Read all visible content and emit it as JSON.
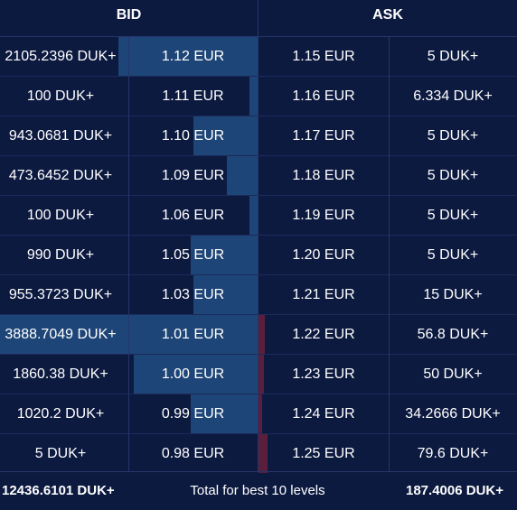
{
  "header": {
    "bid_label": "BID",
    "ask_label": "ASK"
  },
  "rows": [
    {
      "bid_qty": "2105.2396 DUK+",
      "bid_price": "1.12 EUR",
      "ask_price": "1.15 EUR",
      "ask_qty": "5 DUK+",
      "bid_depth": 0.54,
      "ask_depth": 0.0
    },
    {
      "bid_qty": "100 DUK+",
      "bid_price": "1.11 EUR",
      "ask_price": "1.16 EUR",
      "ask_qty": "6.334 DUK+",
      "bid_depth": 0.03,
      "ask_depth": 0.0
    },
    {
      "bid_qty": "943.0681 DUK+",
      "bid_price": "1.10 EUR",
      "ask_price": "1.17 EUR",
      "ask_qty": "5 DUK+",
      "bid_depth": 0.25,
      "ask_depth": 0.0
    },
    {
      "bid_qty": "473.6452 DUK+",
      "bid_price": "1.09 EUR",
      "ask_price": "1.18 EUR",
      "ask_qty": "5 DUK+",
      "bid_depth": 0.12,
      "ask_depth": 0.0
    },
    {
      "bid_qty": "100 DUK+",
      "bid_price": "1.06 EUR",
      "ask_price": "1.19 EUR",
      "ask_qty": "5 DUK+",
      "bid_depth": 0.03,
      "ask_depth": 0.0
    },
    {
      "bid_qty": "990 DUK+",
      "bid_price": "1.05 EUR",
      "ask_price": "1.20 EUR",
      "ask_qty": "5 DUK+",
      "bid_depth": 0.26,
      "ask_depth": 0.0
    },
    {
      "bid_qty": "955.3723 DUK+",
      "bid_price": "1.03 EUR",
      "ask_price": "1.21 EUR",
      "ask_qty": "15 DUK+",
      "bid_depth": 0.25,
      "ask_depth": 0.0
    },
    {
      "bid_qty": "3888.7049 DUK+",
      "bid_price": "1.01 EUR",
      "ask_price": "1.22 EUR",
      "ask_qty": "56.8 DUK+",
      "bid_depth": 1.0,
      "ask_depth": 0.026
    },
    {
      "bid_qty": "1860.38 DUK+",
      "bid_price": "1.00 EUR",
      "ask_price": "1.23 EUR",
      "ask_qty": "50 DUK+",
      "bid_depth": 0.48,
      "ask_depth": 0.02
    },
    {
      "bid_qty": "1020.2 DUK+",
      "bid_price": "0.99 EUR",
      "ask_price": "1.24 EUR",
      "ask_qty": "34.2666 DUK+",
      "bid_depth": 0.26,
      "ask_depth": 0.014
    },
    {
      "bid_qty": "5 DUK+",
      "bid_price": "0.98 EUR",
      "ask_price": "1.25 EUR",
      "ask_qty": "79.6 DUK+",
      "bid_depth": 0.0,
      "ask_depth": 0.035
    }
  ],
  "footer": {
    "bid_total": "12436.6101 DUK+",
    "label": "Total for best 10 levels",
    "ask_total": "187.4006 DUK+"
  },
  "colors": {
    "background": "#0d1a40",
    "bid_bar": "#1e4577",
    "ask_bar": "#5a1f3d",
    "text": "#ffffff"
  }
}
